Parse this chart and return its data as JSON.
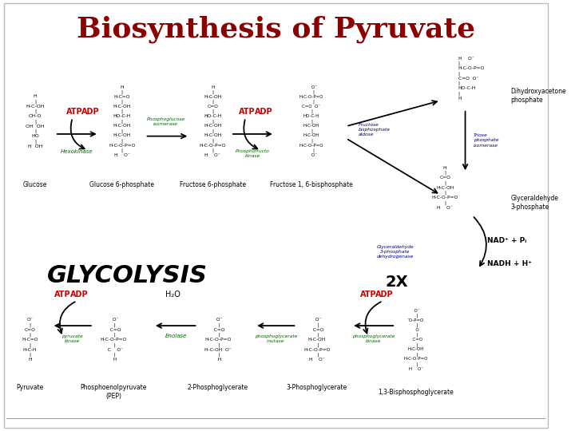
{
  "title": "Biosynthesis of Pyruvate",
  "title_color": "#8B0000",
  "title_fontsize": 26,
  "title_fontweight": "bold",
  "bg_color": "#FFFFFF",
  "fig_width": 7.2,
  "fig_height": 5.4,
  "dpi": 100,
  "atp_color": "#CC0000",
  "adp_color": "#CC0000",
  "enzyme_color": "#006400",
  "blue_color": "#000080",
  "glycolysis_text": "GLYCOLYSIS",
  "twox_text": "2X"
}
